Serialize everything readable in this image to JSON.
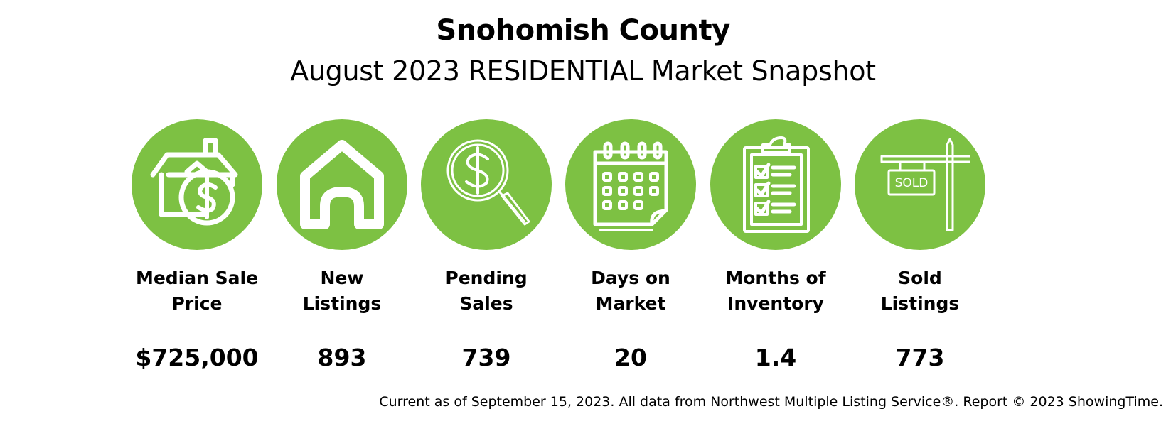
{
  "header": {
    "title": "Snohomish County",
    "subtitle": "August 2023 RESIDENTIAL Market Snapshot"
  },
  "accent_color": "#7DC143",
  "stats": [
    {
      "icon": "house-dollar-icon",
      "label": "Median Sale\nPrice",
      "value": "$725,000"
    },
    {
      "icon": "house-icon",
      "label": "New\nListings",
      "value": "893"
    },
    {
      "icon": "magnifier-dollar-icon",
      "label": "Pending\nSales",
      "value": "739"
    },
    {
      "icon": "calendar-icon",
      "label": "Days on\nMarket",
      "value": "20"
    },
    {
      "icon": "clipboard-checklist-icon",
      "label": "Months of\nInventory",
      "value": "1.4"
    },
    {
      "icon": "sold-sign-icon",
      "label": "Sold\nListings",
      "value": "773",
      "sign_text": "SOLD"
    }
  ],
  "footer": "Current as of September 15, 2023. All data from Northwest Multiple Listing Service®. Report © 2023 ShowingTime."
}
